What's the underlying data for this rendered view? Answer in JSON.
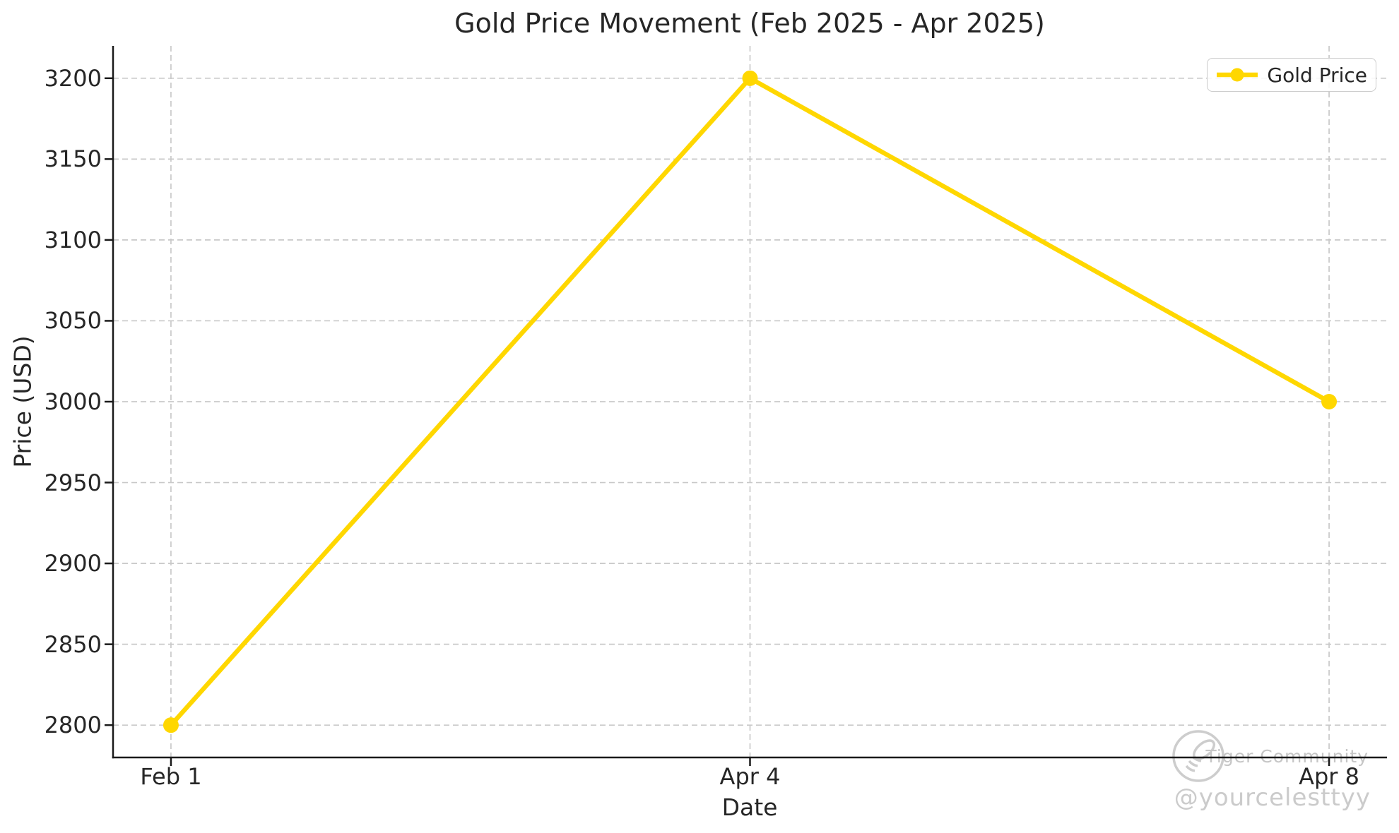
{
  "chart_data": {
    "type": "line",
    "title": "Gold Price Movement (Feb 2025 - Apr 2025)",
    "xlabel": "Date",
    "ylabel": "Price (USD)",
    "categories": [
      "Feb 1",
      "Apr 4",
      "Apr 8"
    ],
    "series": [
      {
        "name": "Gold Price",
        "values": [
          2800,
          3200,
          3000
        ],
        "color": "#FFD700"
      }
    ],
    "yticks": [
      2800,
      2850,
      2900,
      2950,
      3000,
      3050,
      3100,
      3150,
      3200
    ],
    "ylim": [
      2780,
      3220
    ],
    "grid": true,
    "grid_style": "dashed",
    "legend_position": "top-right",
    "marker": "circle"
  },
  "watermark": {
    "brand": "Tiger Community",
    "handle": "@yourcelesttyy"
  },
  "colors": {
    "line": "#FFD700",
    "text": "#262626",
    "grid": "#c9c9c9",
    "spine": "#1a1a1a",
    "watermark": "#cdcdcd"
  }
}
